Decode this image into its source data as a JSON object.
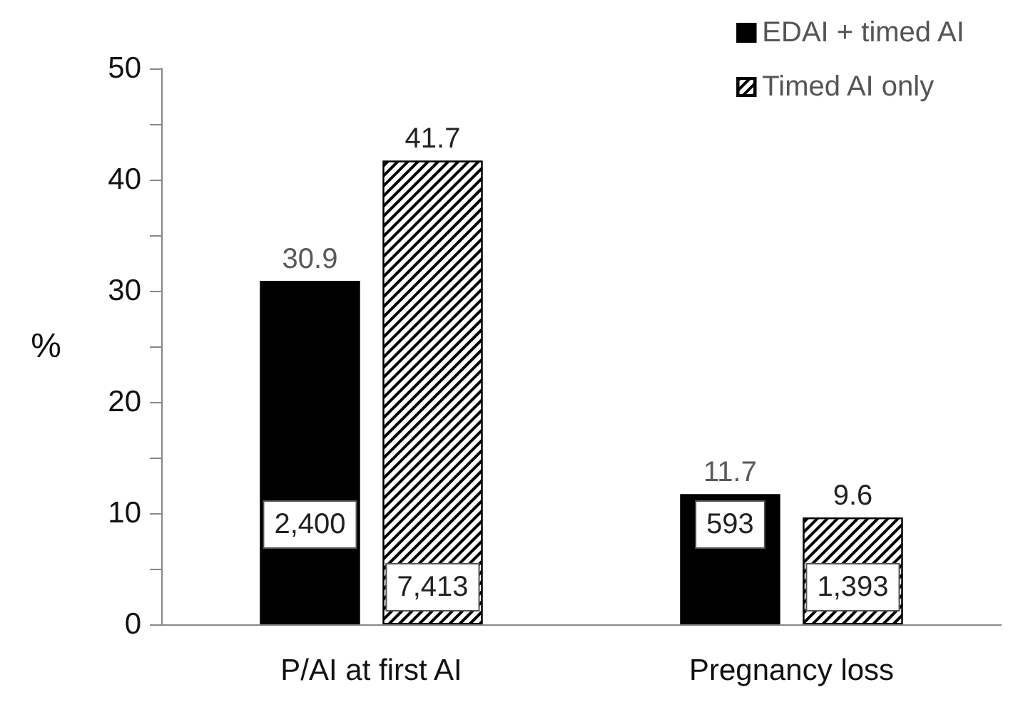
{
  "chart_data": {
    "type": "bar",
    "ylabel": "%",
    "categories": [
      "P/AI at first AI",
      "Pregnancy loss"
    ],
    "series": [
      {
        "name": "EDAI + timed AI",
        "color": "#000000",
        "values": [
          30.9,
          11.7
        ]
      },
      {
        "name": "Timed AI only",
        "color": "#ffffff",
        "values": [
          41.7,
          9.6
        ]
      }
    ],
    "ylim": [
      0,
      50
    ],
    "yticks": [
      0,
      {
        "value": 5,
        "label": null
      },
      10,
      {
        "value": 15,
        "label": null
      },
      20,
      {
        "value": 25,
        "label": null
      },
      30,
      {
        "value": 35,
        "label": null
      },
      40,
      {
        "value": 45,
        "label": null
      },
      50
    ],
    "data_labels": true,
    "grid": false,
    "legend": "top right",
    "annotations": [
      "2,400",
      "7,413",
      "593",
      "1,393"
    ]
  }
}
